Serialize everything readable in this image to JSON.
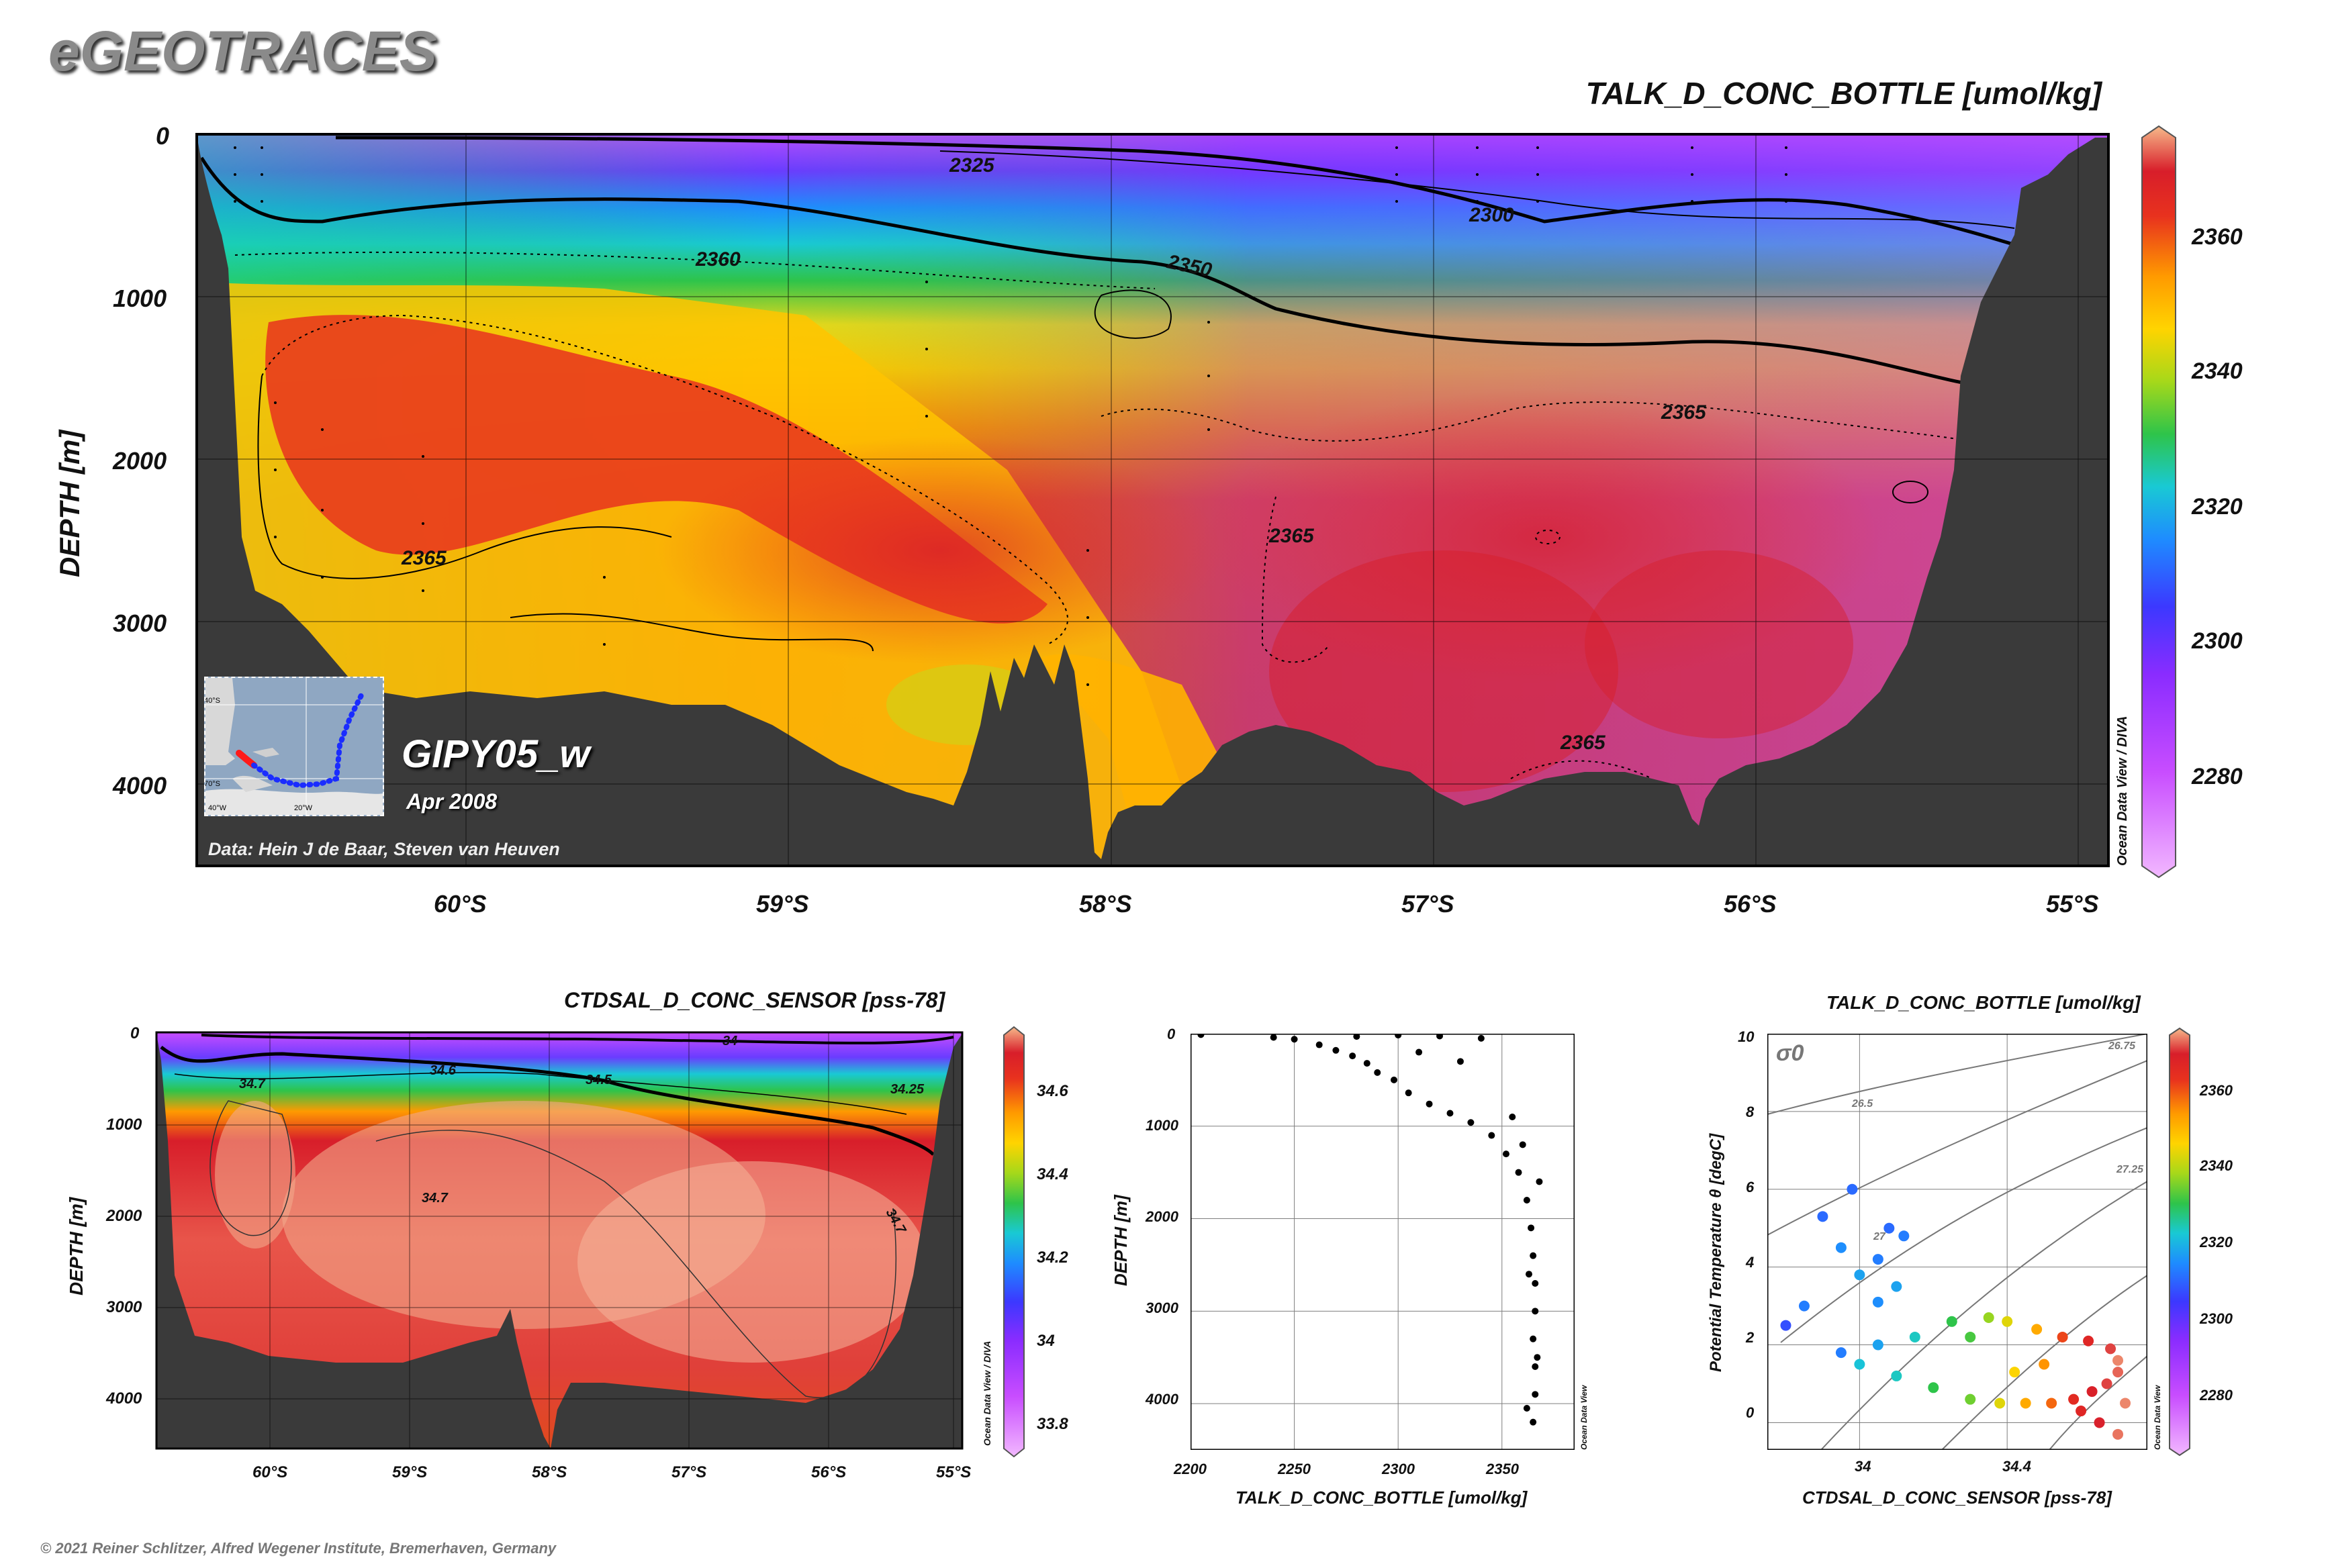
{
  "header": {
    "logo_text": "eGEOTRACES",
    "copyright": "© 2021 Reiner Schlitzer, Alfred Wegener Institute, Bremerhaven, Germany"
  },
  "main_section": {
    "title": "TALK_D_CONC_BOTTLE [umol/kg]",
    "ylabel": "DEPTH [m]",
    "cruise": "GIPY05_w",
    "date": "Apr 2008",
    "credit": "Data: Hein J de Baar, Steven van Heuven",
    "watermark": "Ocean Data View / DIVA",
    "inset_map_labels": {
      "lat_top": "40°S",
      "lat_bottom": "70°S",
      "lon_left": "40°W",
      "lon_right": "20°W"
    },
    "colorbar_ticks": [
      "2360",
      "2340",
      "2320",
      "2300",
      "2280"
    ],
    "contour_labels": [
      "2325",
      "2300",
      "2360",
      "2350",
      "2365",
      "2365",
      "2365",
      "2365"
    ]
  },
  "colors": {
    "seafloor": "#3a3a3a",
    "track_red": "#ff1a1a",
    "track_blue": "#1a2cff",
    "colormap": [
      "#f2b8ff",
      "#c84dff",
      "#8a2cff",
      "#3c38ff",
      "#1e8cff",
      "#19c9d4",
      "#2ec44a",
      "#a6d81a",
      "#ffd400",
      "#ff9a00",
      "#e8321e",
      "#d81e2a",
      "#f6b98a"
    ]
  },
  "chart_data": [
    {
      "type": "heatmap",
      "title": "TALK_D_CONC_BOTTLE [umol/kg]",
      "xlabel": "",
      "ylabel": "DEPTH [m]",
      "xticks": [
        "60°S",
        "59°S",
        "58°S",
        "57°S",
        "56°S",
        "55°S"
      ],
      "x": [
        -60,
        -59,
        -58,
        -57,
        -56,
        -55
      ],
      "yticks": [
        "0",
        "1000",
        "2000",
        "3000",
        "4000"
      ],
      "ylim": [
        4500,
        0
      ],
      "xlim": [
        -60.85,
        -54.9
      ],
      "colorbar_range": [
        2265,
        2375
      ],
      "contours": [
        2300,
        2325,
        2350,
        2360,
        2365
      ]
    },
    {
      "type": "heatmap",
      "title": "CTDSAL_D_CONC_SENSOR [pss-78]",
      "ylabel": "DEPTH [m]",
      "xticks": [
        "60°S",
        "59°S",
        "58°S",
        "57°S",
        "56°S",
        "55°S"
      ],
      "yticks": [
        "0",
        "1000",
        "2000",
        "3000",
        "4000"
      ],
      "ylim": [
        4500,
        0
      ],
      "colorbar_ticks": [
        "34.6",
        "34.4",
        "34.2",
        "34",
        "33.8"
      ],
      "colorbar_range": [
        33.7,
        34.75
      ],
      "contour_labels": [
        "34",
        "34.7",
        "34.6",
        "34.5",
        "34.25",
        "34.7",
        "34.7"
      ],
      "watermark": "Ocean Data View / DIVA"
    },
    {
      "type": "scatter",
      "xlabel": "TALK_D_CONC_BOTTLE [umol/kg]",
      "ylabel": "DEPTH [m]",
      "xticks": [
        "2200",
        "2250",
        "2300",
        "2350"
      ],
      "yticks": [
        "0",
        "1000",
        "2000",
        "3000",
        "4000"
      ],
      "xlim": [
        2200,
        2385
      ],
      "ylim": [
        4500,
        0
      ],
      "watermark": "Ocean Data View",
      "points": [
        [
          2205,
          10
        ],
        [
          2240,
          40
        ],
        [
          2250,
          60
        ],
        [
          2262,
          120
        ],
        [
          2270,
          180
        ],
        [
          2278,
          240
        ],
        [
          2285,
          320
        ],
        [
          2290,
          420
        ],
        [
          2298,
          500
        ],
        [
          2305,
          640
        ],
        [
          2315,
          760
        ],
        [
          2325,
          860
        ],
        [
          2335,
          960
        ],
        [
          2345,
          1100
        ],
        [
          2352,
          1300
        ],
        [
          2358,
          1500
        ],
        [
          2362,
          1800
        ],
        [
          2364,
          2100
        ],
        [
          2365,
          2400
        ],
        [
          2366,
          2700
        ],
        [
          2366,
          3000
        ],
        [
          2365,
          3300
        ],
        [
          2366,
          3600
        ],
        [
          2366,
          3900
        ],
        [
          2365,
          4200
        ],
        [
          2280,
          30
        ],
        [
          2300,
          15
        ],
        [
          2320,
          25
        ],
        [
          2340,
          50
        ],
        [
          2330,
          300
        ],
        [
          2310,
          200
        ],
        [
          2355,
          900
        ],
        [
          2360,
          1200
        ],
        [
          2368,
          1600
        ],
        [
          2363,
          2600
        ],
        [
          2367,
          3500
        ],
        [
          2362,
          4050
        ]
      ]
    },
    {
      "type": "scatter",
      "title": "TALK_D_CONC_BOTTLE [umol/kg]",
      "xlabel": "CTDSAL_D_CONC_SENSOR [pss-78]",
      "ylabel": "Potential Temperature θ [degC]",
      "xticks": [
        "34",
        "34.4"
      ],
      "yticks": [
        "0",
        "2",
        "4",
        "6",
        "8",
        "10"
      ],
      "xlim": [
        33.75,
        34.78
      ],
      "ylim": [
        -0.7,
        10
      ],
      "sigma_label": "σ0",
      "isopycnal_labels": [
        "26.75",
        "26.5",
        "27.25",
        "27"
      ],
      "colorbar_ticks": [
        "2360",
        "2340",
        "2320",
        "2300",
        "2280"
      ],
      "colorbar_range": [
        2265,
        2375
      ],
      "watermark": "Ocean Data View",
      "points": [
        [
          33.8,
          2.5,
          2295
        ],
        [
          33.85,
          3.0,
          2300
        ],
        [
          33.9,
          5.3,
          2298
        ],
        [
          33.95,
          4.5,
          2302
        ],
        [
          34.0,
          3.8,
          2305
        ],
        [
          34.05,
          4.2,
          2300
        ],
        [
          34.1,
          3.5,
          2305
        ],
        [
          34.08,
          5.0,
          2298
        ],
        [
          34.12,
          4.8,
          2300
        ],
        [
          34.0,
          1.5,
          2310
        ],
        [
          34.1,
          1.2,
          2312
        ],
        [
          34.2,
          0.9,
          2320
        ],
        [
          34.3,
          0.6,
          2325
        ],
        [
          34.38,
          0.5,
          2335
        ],
        [
          34.45,
          0.5,
          2345
        ],
        [
          34.52,
          0.5,
          2352
        ],
        [
          34.58,
          0.6,
          2360
        ],
        [
          34.63,
          0.8,
          2365
        ],
        [
          34.67,
          1.0,
          2368
        ],
        [
          34.7,
          1.3,
          2370
        ],
        [
          34.7,
          1.6,
          2372
        ],
        [
          34.68,
          1.9,
          2368
        ],
        [
          34.62,
          2.1,
          2362
        ],
        [
          34.55,
          2.2,
          2355
        ],
        [
          34.48,
          2.4,
          2345
        ],
        [
          34.4,
          2.6,
          2335
        ],
        [
          34.35,
          2.7,
          2328
        ],
        [
          34.25,
          2.6,
          2320
        ],
        [
          34.15,
          2.2,
          2312
        ],
        [
          34.05,
          2.0,
          2305
        ],
        [
          33.95,
          1.8,
          2300
        ],
        [
          34.6,
          0.3,
          2362
        ],
        [
          34.65,
          0.0,
          2366
        ],
        [
          34.7,
          -0.3,
          2371
        ],
        [
          34.72,
          0.5,
          2372
        ],
        [
          34.5,
          1.5,
          2348
        ],
        [
          34.42,
          1.3,
          2338
        ],
        [
          34.3,
          2.2,
          2322
        ],
        [
          33.98,
          6.0,
          2298
        ],
        [
          34.05,
          3.1,
          2302
        ]
      ]
    }
  ]
}
